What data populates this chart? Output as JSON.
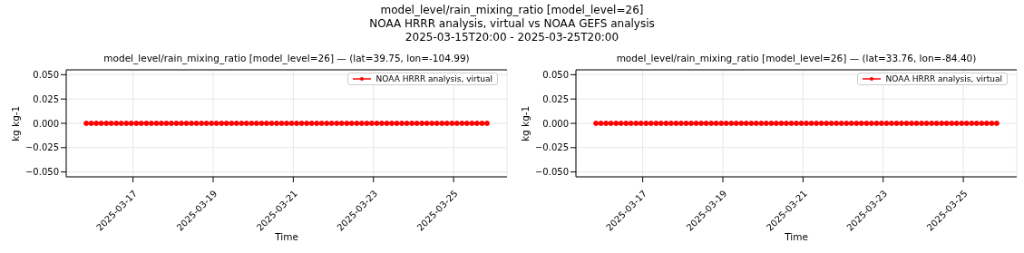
{
  "chart_data": [
    {
      "type": "line",
      "title": "model_level/rain_mixing_ratio [model_level=26] — (lat=39.75, lon=-104.99)",
      "annotations": [
        "model_level/rain_mixing_ratio [model_level=26]",
        "NOAA HRRR analysis, virtual vs NOAA GEFS analysis",
        "2025-03-15T20:00 - 2025-03-25T20:00"
      ],
      "xlabel": "Time",
      "ylabel": "kg kg-1",
      "x": [
        "2025-03-15T20:00",
        "2025-03-15T23:00",
        "2025-03-16T02:00",
        "2025-03-16T05:00",
        "2025-03-16T08:00",
        "2025-03-16T11:00",
        "2025-03-16T14:00",
        "2025-03-16T17:00",
        "2025-03-16T20:00",
        "2025-03-16T23:00",
        "2025-03-17T02:00",
        "2025-03-17T05:00",
        "2025-03-17T08:00",
        "2025-03-17T11:00",
        "2025-03-17T14:00",
        "2025-03-17T17:00",
        "2025-03-17T20:00",
        "2025-03-17T23:00",
        "2025-03-18T02:00",
        "2025-03-18T05:00",
        "2025-03-18T08:00",
        "2025-03-18T11:00",
        "2025-03-18T14:00",
        "2025-03-18T17:00",
        "2025-03-18T20:00",
        "2025-03-18T23:00",
        "2025-03-19T02:00",
        "2025-03-19T05:00",
        "2025-03-19T08:00",
        "2025-03-19T11:00",
        "2025-03-19T14:00",
        "2025-03-19T17:00",
        "2025-03-19T20:00",
        "2025-03-19T23:00",
        "2025-03-20T02:00",
        "2025-03-20T05:00",
        "2025-03-20T08:00",
        "2025-03-20T11:00",
        "2025-03-20T14:00",
        "2025-03-20T17:00",
        "2025-03-20T20:00",
        "2025-03-20T23:00",
        "2025-03-21T02:00",
        "2025-03-21T05:00",
        "2025-03-21T08:00",
        "2025-03-21T11:00",
        "2025-03-21T14:00",
        "2025-03-21T17:00",
        "2025-03-21T20:00",
        "2025-03-21T23:00",
        "2025-03-22T02:00",
        "2025-03-22T05:00",
        "2025-03-22T08:00",
        "2025-03-22T11:00",
        "2025-03-22T14:00",
        "2025-03-22T17:00",
        "2025-03-22T20:00",
        "2025-03-22T23:00",
        "2025-03-23T02:00",
        "2025-03-23T05:00",
        "2025-03-23T08:00",
        "2025-03-23T11:00",
        "2025-03-23T14:00",
        "2025-03-23T17:00",
        "2025-03-23T20:00",
        "2025-03-23T23:00",
        "2025-03-24T02:00",
        "2025-03-24T05:00",
        "2025-03-24T08:00",
        "2025-03-24T11:00",
        "2025-03-24T14:00",
        "2025-03-24T17:00",
        "2025-03-24T20:00",
        "2025-03-24T23:00",
        "2025-03-25T02:00",
        "2025-03-25T05:00",
        "2025-03-25T08:00",
        "2025-03-25T11:00",
        "2025-03-25T14:00",
        "2025-03-25T17:00",
        "2025-03-25T20:00"
      ],
      "series": [
        {
          "name": "NOAA HRRR analysis, virtual",
          "color": "#ff0000",
          "values": [
            0,
            0,
            0,
            0,
            0,
            0,
            0,
            0,
            0,
            0,
            0,
            0,
            0,
            0,
            0,
            0,
            0,
            0,
            0,
            0,
            0,
            0,
            0,
            0,
            0,
            0,
            0,
            0,
            0,
            0,
            0,
            0,
            0,
            0,
            0,
            0,
            0,
            0,
            0,
            0,
            0,
            0,
            0,
            0,
            0,
            0,
            0,
            0,
            0,
            0,
            0,
            0,
            0,
            0,
            0,
            0,
            0,
            0,
            0,
            0,
            0,
            0,
            0,
            0,
            0,
            0,
            0,
            0,
            0,
            0,
            0,
            0,
            0,
            0,
            0,
            0,
            0,
            0,
            0,
            0,
            0
          ]
        }
      ],
      "xlim": [
        "2025-03-15T08:00",
        "2025-03-26T08:00"
      ],
      "xticks": [
        "2025-03-17",
        "2025-03-19",
        "2025-03-21",
        "2025-03-23",
        "2025-03-25"
      ],
      "ylim": [
        -0.055,
        0.055
      ],
      "yticks": [
        {
          "value": -0.05,
          "label": "−0.050"
        },
        {
          "value": -0.025,
          "label": "−0.025"
        },
        {
          "value": 0,
          "label": "0.000"
        },
        {
          "value": 0.025,
          "label": "0.025"
        },
        {
          "value": 0.05,
          "label": "0.050"
        }
      ],
      "grid": true,
      "legend": "top right",
      "marker": "circle"
    },
    {
      "type": "line",
      "title": "model_level/rain_mixing_ratio [model_level=26] — (lat=33.76, lon=-84.40)",
      "xlabel": "Time",
      "ylabel": "kg kg-1",
      "x": [
        "2025-03-15T20:00",
        "2025-03-15T23:00",
        "2025-03-16T02:00",
        "2025-03-16T05:00",
        "2025-03-16T08:00",
        "2025-03-16T11:00",
        "2025-03-16T14:00",
        "2025-03-16T17:00",
        "2025-03-16T20:00",
        "2025-03-16T23:00",
        "2025-03-17T02:00",
        "2025-03-17T05:00",
        "2025-03-17T08:00",
        "2025-03-17T11:00",
        "2025-03-17T14:00",
        "2025-03-17T17:00",
        "2025-03-17T20:00",
        "2025-03-17T23:00",
        "2025-03-18T02:00",
        "2025-03-18T05:00",
        "2025-03-18T08:00",
        "2025-03-18T11:00",
        "2025-03-18T14:00",
        "2025-03-18T17:00",
        "2025-03-18T20:00",
        "2025-03-18T23:00",
        "2025-03-19T02:00",
        "2025-03-19T05:00",
        "2025-03-19T08:00",
        "2025-03-19T11:00",
        "2025-03-19T14:00",
        "2025-03-19T17:00",
        "2025-03-19T20:00",
        "2025-03-19T23:00",
        "2025-03-20T02:00",
        "2025-03-20T05:00",
        "2025-03-20T08:00",
        "2025-03-20T11:00",
        "2025-03-20T14:00",
        "2025-03-20T17:00",
        "2025-03-20T20:00",
        "2025-03-20T23:00",
        "2025-03-21T02:00",
        "2025-03-21T05:00",
        "2025-03-21T08:00",
        "2025-03-21T11:00",
        "2025-03-21T14:00",
        "2025-03-21T17:00",
        "2025-03-21T20:00",
        "2025-03-21T23:00",
        "2025-03-22T02:00",
        "2025-03-22T05:00",
        "2025-03-22T08:00",
        "2025-03-22T11:00",
        "2025-03-22T14:00",
        "2025-03-22T17:00",
        "2025-03-22T20:00",
        "2025-03-22T23:00",
        "2025-03-23T02:00",
        "2025-03-23T05:00",
        "2025-03-23T08:00",
        "2025-03-23T11:00",
        "2025-03-23T14:00",
        "2025-03-23T17:00",
        "2025-03-23T20:00",
        "2025-03-23T23:00",
        "2025-03-24T02:00",
        "2025-03-24T05:00",
        "2025-03-24T08:00",
        "2025-03-24T11:00",
        "2025-03-24T14:00",
        "2025-03-24T17:00",
        "2025-03-24T20:00",
        "2025-03-24T23:00",
        "2025-03-25T02:00",
        "2025-03-25T05:00",
        "2025-03-25T08:00",
        "2025-03-25T11:00",
        "2025-03-25T14:00",
        "2025-03-25T17:00",
        "2025-03-25T20:00"
      ],
      "series": [
        {
          "name": "NOAA HRRR analysis, virtual",
          "color": "#ff0000",
          "values": [
            0,
            0,
            0,
            0,
            0,
            0,
            0,
            0,
            0,
            0,
            0,
            0,
            0,
            0,
            0,
            0,
            0,
            0,
            0,
            0,
            0,
            0,
            0,
            0,
            0,
            0,
            0,
            0,
            0,
            0,
            0,
            0,
            0,
            0,
            0,
            0,
            0,
            0,
            0,
            0,
            0,
            0,
            0,
            0,
            0,
            0,
            0,
            0,
            0,
            0,
            0,
            0,
            0,
            0,
            0,
            0,
            0,
            0,
            0,
            0,
            0,
            0,
            0,
            0,
            0,
            0,
            0,
            0,
            0,
            0,
            0,
            0,
            0,
            0,
            0,
            0,
            0,
            0,
            0,
            0,
            0
          ]
        }
      ],
      "xlim": [
        "2025-03-15T08:00",
        "2025-03-26T08:00"
      ],
      "xticks": [
        "2025-03-17",
        "2025-03-19",
        "2025-03-21",
        "2025-03-23",
        "2025-03-25"
      ],
      "ylim": [
        -0.055,
        0.055
      ],
      "yticks": [
        {
          "value": -0.05,
          "label": "−0.050"
        },
        {
          "value": -0.025,
          "label": "−0.025"
        },
        {
          "value": 0,
          "label": "0.000"
        },
        {
          "value": 0.025,
          "label": "0.025"
        },
        {
          "value": 0.05,
          "label": "0.050"
        }
      ],
      "grid": true,
      "legend": "top right",
      "marker": "circle"
    }
  ]
}
